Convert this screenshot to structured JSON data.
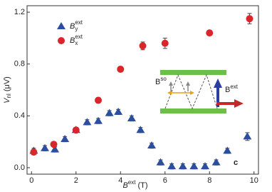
{
  "chart_data": {
    "type": "scatter",
    "x_label": {
      "main": "B",
      "sup": "ext",
      "unit": " (T)"
    },
    "y_label": {
      "main": "V",
      "sub": "nl",
      "unit": " (μV)"
    },
    "panel_label": "c",
    "xlim": [
      -0.2,
      10.2
    ],
    "ylim": [
      -0.05,
      1.25
    ],
    "xticks": [
      0,
      2,
      4,
      6,
      8,
      10
    ],
    "yticks": [
      {
        "value": 0,
        "label": "0.0"
      },
      0.4,
      0.8,
      1.2
    ],
    "legend": "upper left",
    "series": [
      {
        "name": "B",
        "name_sub": "y",
        "name_sup": "ext",
        "marker": "triangle",
        "color": "#2b4f9e",
        "x": [
          0.1,
          0.6,
          1.05,
          1.5,
          2,
          2.5,
          3,
          3.5,
          3.9,
          4.5,
          4.9,
          5.4,
          5.8,
          6.3,
          6.8,
          7.3,
          7.8,
          8.3,
          8.8,
          9.7
        ],
        "values": [
          0.13,
          0.15,
          0.14,
          0.22,
          0.29,
          0.35,
          0.36,
          0.42,
          0.43,
          0.38,
          0.29,
          0.17,
          0.04,
          0.01,
          0.01,
          0.01,
          0.01,
          0.04,
          0.13,
          0.24
        ],
        "errors": [
          0.02,
          0.02,
          0.02,
          0.02,
          0.02,
          0.02,
          0.02,
          0.02,
          0.02,
          0.02,
          0.02,
          0.02,
          0.02,
          0.02,
          0.02,
          0.02,
          0.02,
          0.02,
          0.02,
          0.03
        ]
      },
      {
        "name": "B",
        "name_sub": "x",
        "name_sup": "ext",
        "marker": "circle",
        "color": "#d9262b",
        "x": [
          0.1,
          1,
          2,
          3,
          4,
          5,
          6,
          8,
          9.8
        ],
        "values": [
          0.12,
          0.18,
          0.29,
          0.52,
          0.76,
          0.94,
          0.96,
          1.04,
          1.15
        ],
        "errors": [
          0.02,
          0.02,
          0.02,
          0.02,
          0.02,
          0.03,
          0.04,
          0.02,
          0.04
        ]
      }
    ],
    "inset": {
      "so_label": {
        "main": "B",
        "sup": "so"
      },
      "ext_label": {
        "main": "B",
        "sup": "ext"
      }
    }
  }
}
